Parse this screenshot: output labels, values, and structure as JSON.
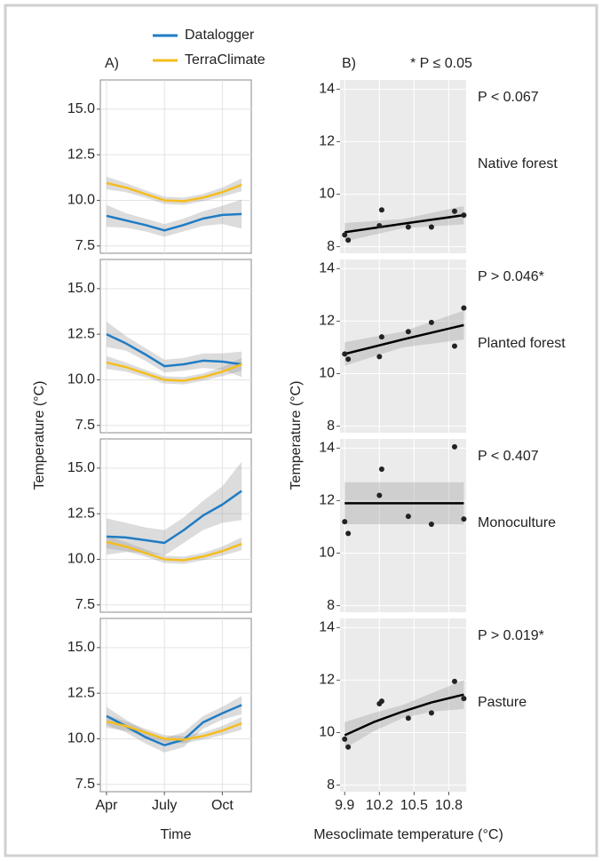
{
  "panel_a": {
    "label": "A)",
    "xlabel": "Time",
    "ylabel": "Temperature (°C)"
  },
  "panel_b": {
    "label": "B)",
    "note": "* P ≤ 0.05",
    "xlabel": "Mesoclimate temperature (°C)",
    "ylabel": "Temperature (°C)"
  },
  "chart_data": [
    {
      "type": "line",
      "x": [
        4,
        5,
        6,
        7,
        8,
        9,
        10,
        11
      ],
      "xlim": [
        3.68,
        11.5
      ],
      "ylim": [
        7.1,
        16.6
      ],
      "xticks": [
        {
          "value": 4,
          "label": "Apr"
        },
        {
          "value": 7,
          "label": "July"
        },
        {
          "value": 10,
          "label": "Oct"
        }
      ],
      "yticks": [
        7.5,
        {
          "value": 10,
          "label": "10.0"
        },
        12.5,
        {
          "value": 15,
          "label": "15.0"
        }
      ],
      "series": [
        {
          "name": "Datalogger",
          "color": "#1f7cc4",
          "values": [
            9.15,
            8.9,
            8.65,
            8.35,
            8.65,
            9.0,
            9.2,
            9.25
          ],
          "lower": [
            8.55,
            8.5,
            8.3,
            8.0,
            8.3,
            8.6,
            8.7,
            8.45
          ],
          "upper": [
            9.75,
            9.3,
            9.0,
            8.7,
            9.0,
            9.4,
            9.7,
            10.05
          ]
        },
        {
          "name": "TerraClimate",
          "color": "#f5bd1f",
          "values": [
            10.95,
            10.7,
            10.35,
            10.0,
            9.95,
            10.15,
            10.45,
            10.85
          ],
          "lower": [
            10.6,
            10.45,
            10.15,
            9.8,
            9.75,
            9.95,
            10.2,
            10.5
          ],
          "upper": [
            11.3,
            10.95,
            10.55,
            10.2,
            10.15,
            10.35,
            10.7,
            11.2
          ]
        }
      ]
    },
    {
      "type": "line",
      "x": [
        4,
        5,
        6,
        7,
        8,
        9,
        10,
        11
      ],
      "xlim": [
        3.68,
        11.5
      ],
      "ylim": [
        7.1,
        16.6
      ],
      "xticks": [
        {
          "value": 4,
          "label": "Apr"
        },
        {
          "value": 7,
          "label": "July"
        },
        {
          "value": 10,
          "label": "Oct"
        }
      ],
      "yticks": [
        7.5,
        {
          "value": 10,
          "label": "10.0"
        },
        12.5,
        {
          "value": 15,
          "label": "15.0"
        }
      ],
      "series": [
        {
          "name": "Datalogger",
          "color": "#1f7cc4",
          "values": [
            12.5,
            12.0,
            11.4,
            10.75,
            10.85,
            11.05,
            11.0,
            10.85
          ],
          "lower": [
            11.8,
            11.6,
            11.05,
            10.4,
            10.5,
            10.65,
            10.55,
            10.15
          ],
          "upper": [
            13.2,
            12.4,
            11.75,
            11.1,
            11.2,
            11.45,
            11.45,
            11.55
          ]
        },
        {
          "name": "TerraClimate",
          "color": "#f5bd1f",
          "values": [
            10.95,
            10.7,
            10.35,
            10.0,
            9.95,
            10.15,
            10.45,
            10.85
          ],
          "lower": [
            10.6,
            10.45,
            10.15,
            9.8,
            9.75,
            9.95,
            10.2,
            10.5
          ],
          "upper": [
            11.3,
            10.95,
            10.55,
            10.2,
            10.15,
            10.35,
            10.7,
            11.2
          ]
        }
      ]
    },
    {
      "type": "line",
      "x": [
        4,
        5,
        6,
        7,
        8,
        9,
        10,
        11
      ],
      "xlim": [
        3.68,
        11.5
      ],
      "ylim": [
        7.1,
        16.6
      ],
      "xticks": [
        {
          "value": 4,
          "label": "Apr"
        },
        {
          "value": 7,
          "label": "July"
        },
        {
          "value": 10,
          "label": "Oct"
        }
      ],
      "yticks": [
        7.5,
        {
          "value": 10,
          "label": "10.0"
        },
        12.5,
        {
          "value": 15,
          "label": "15.0"
        }
      ],
      "series": [
        {
          "name": "Datalogger",
          "color": "#1f7cc4",
          "values": [
            11.25,
            11.2,
            11.05,
            10.9,
            11.6,
            12.4,
            13.0,
            13.75
          ],
          "lower": [
            10.25,
            10.4,
            10.35,
            10.2,
            10.9,
            11.6,
            12.0,
            12.15
          ],
          "upper": [
            12.25,
            12.0,
            11.75,
            11.6,
            12.3,
            13.2,
            14.0,
            15.35
          ]
        },
        {
          "name": "TerraClimate",
          "color": "#f5bd1f",
          "values": [
            10.95,
            10.7,
            10.35,
            10.0,
            9.95,
            10.15,
            10.45,
            10.85
          ],
          "lower": [
            10.6,
            10.45,
            10.15,
            9.8,
            9.75,
            9.95,
            10.2,
            10.5
          ],
          "upper": [
            11.3,
            10.95,
            10.55,
            10.2,
            10.15,
            10.35,
            10.7,
            11.2
          ]
        }
      ]
    },
    {
      "type": "line",
      "x": [
        4,
        5,
        6,
        7,
        8,
        9,
        10,
        11
      ],
      "xlim": [
        3.68,
        11.5
      ],
      "ylim": [
        7.1,
        16.6
      ],
      "xticks": [
        {
          "value": 4,
          "label": "Apr"
        },
        {
          "value": 7,
          "label": "July"
        },
        {
          "value": 10,
          "label": "Oct"
        }
      ],
      "yticks": [
        7.5,
        {
          "value": 10,
          "label": "10.0"
        },
        12.5,
        {
          "value": 15,
          "label": "15.0"
        }
      ],
      "series": [
        {
          "name": "Datalogger",
          "color": "#1f7cc4",
          "values": [
            11.25,
            10.7,
            10.1,
            9.65,
            9.95,
            10.9,
            11.4,
            11.85
          ],
          "lower": [
            10.75,
            10.35,
            9.75,
            9.25,
            9.55,
            10.55,
            11.05,
            11.35
          ],
          "upper": [
            11.75,
            11.05,
            10.45,
            10.05,
            10.35,
            11.25,
            11.75,
            12.35
          ]
        },
        {
          "name": "TerraClimate",
          "color": "#f5bd1f",
          "values": [
            10.95,
            10.7,
            10.35,
            10.0,
            9.95,
            10.15,
            10.45,
            10.85
          ],
          "lower": [
            10.6,
            10.45,
            10.15,
            9.8,
            9.75,
            9.95,
            10.2,
            10.5
          ],
          "upper": [
            11.3,
            10.95,
            10.55,
            10.2,
            10.15,
            10.35,
            10.7,
            11.2
          ]
        }
      ]
    },
    {
      "type": "scatter",
      "annotation": "P < 0.067",
      "label": "Native forest",
      "color": "#222222",
      "x": [
        9.9,
        9.93,
        10.2,
        10.22,
        10.45,
        10.65,
        10.85,
        10.93
      ],
      "values": [
        8.45,
        8.25,
        8.8,
        9.4,
        8.75,
        8.75,
        9.35,
        9.2
      ],
      "fit": {
        "x": [
          9.9,
          10.4,
          10.93
        ],
        "y": [
          8.55,
          8.87,
          9.2
        ],
        "lower": [
          8.2,
          8.7,
          8.85
        ],
        "upper": [
          8.9,
          9.05,
          9.55
        ]
      },
      "xlim": [
        9.86,
        10.95
      ],
      "ylim": [
        7.75,
        14.35
      ],
      "xticks": [
        9.9,
        10.2,
        10.5,
        10.8
      ],
      "yticks": [
        8,
        10,
        12,
        14
      ]
    },
    {
      "type": "scatter",
      "annotation": "P > 0.046*",
      "label": "Planted forest",
      "color": "#222222",
      "x": [
        9.9,
        9.93,
        10.2,
        10.22,
        10.45,
        10.65,
        10.85,
        10.93
      ],
      "values": [
        10.75,
        10.55,
        10.65,
        11.4,
        11.6,
        11.95,
        11.05,
        12.5
      ],
      "fit": {
        "x": [
          9.9,
          10.4,
          10.93
        ],
        "y": [
          10.75,
          11.3,
          11.85
        ],
        "lower": [
          10.3,
          11.0,
          11.3
        ],
        "upper": [
          11.2,
          11.6,
          12.4
        ]
      },
      "xlim": [
        9.86,
        10.95
      ],
      "ylim": [
        7.75,
        14.35
      ],
      "xticks": [
        9.9,
        10.2,
        10.5,
        10.8
      ],
      "yticks": [
        8,
        10,
        12,
        14
      ]
    },
    {
      "type": "scatter",
      "annotation": "P < 0.407",
      "label": "Monoculture",
      "color": "#222222",
      "x": [
        9.9,
        9.93,
        10.2,
        10.22,
        10.45,
        10.65,
        10.85,
        10.93
      ],
      "values": [
        11.2,
        10.75,
        12.2,
        13.2,
        11.4,
        11.1,
        14.05,
        11.3
      ],
      "fit": {
        "x": [
          9.9,
          10.4,
          10.93
        ],
        "y": [
          11.9,
          11.9,
          11.9
        ],
        "lower": [
          11.1,
          11.1,
          11.1
        ],
        "upper": [
          12.7,
          12.7,
          12.7
        ]
      },
      "xlim": [
        9.86,
        10.95
      ],
      "ylim": [
        7.75,
        14.35
      ],
      "xticks": [
        9.9,
        10.2,
        10.5,
        10.8
      ],
      "yticks": [
        8,
        10,
        12,
        14
      ]
    },
    {
      "type": "scatter",
      "annotation": "P > 0.019*",
      "label": "Pasture",
      "color": "#222222",
      "x": [
        9.9,
        9.93,
        10.2,
        10.22,
        10.45,
        10.65,
        10.85,
        10.93
      ],
      "values": [
        9.75,
        9.45,
        11.1,
        11.2,
        10.55,
        10.75,
        11.95,
        11.3
      ],
      "fit": {
        "x": [
          9.9,
          10.15,
          10.4,
          10.65,
          10.93
        ],
        "y": [
          9.9,
          10.4,
          10.8,
          11.15,
          11.45
        ],
        "lower": [
          9.4,
          10.05,
          10.55,
          10.8,
          10.9
        ],
        "upper": [
          10.4,
          10.75,
          11.05,
          11.5,
          12.0
        ]
      },
      "xlim": [
        9.86,
        10.95
      ],
      "ylim": [
        7.75,
        14.35
      ],
      "xticks": [
        9.9,
        10.2,
        10.5,
        10.8
      ],
      "yticks": [
        8,
        10,
        12,
        14
      ]
    }
  ]
}
